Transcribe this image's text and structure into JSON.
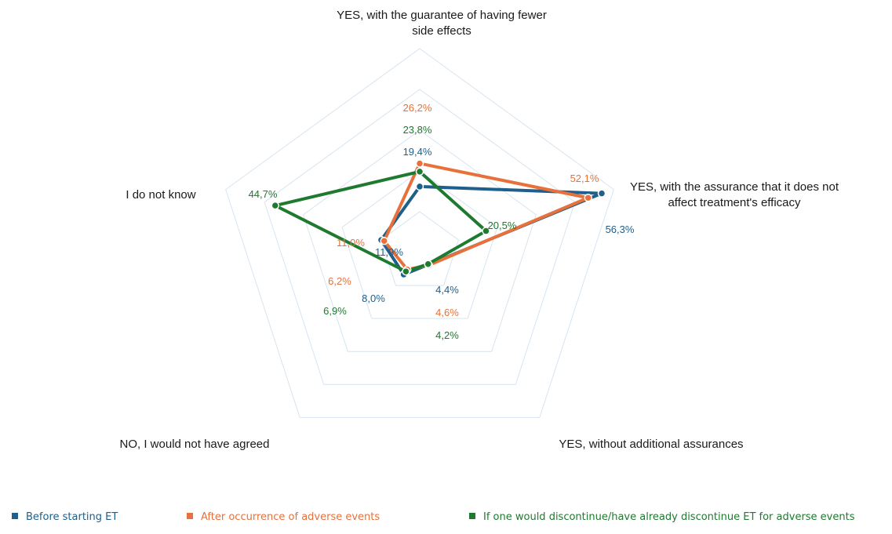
{
  "chart_data": {
    "type": "radar",
    "axes": [
      {
        "label_lines": [
          "YES, with the guarantee of having fewer",
          "side effects"
        ]
      },
      {
        "label_lines": [
          "YES, with the assurance that it does not",
          "affect treatment's efficacy"
        ]
      },
      {
        "label_lines": [
          "YES, without additional assurances"
        ]
      },
      {
        "label_lines": [
          "NO, I would not have agreed"
        ]
      },
      {
        "label_lines": [
          "I do not know"
        ]
      }
    ],
    "rmax": 60,
    "rings": 5,
    "series": [
      {
        "name": "Before starting ET",
        "color": "#1f5f8b",
        "values": [
          19.4,
          56.3,
          4.4,
          8.0,
          11.9
        ],
        "labels": [
          "19,4%",
          "56,3%",
          "4,4%",
          "8,0%",
          "11,9%"
        ]
      },
      {
        "name": "After occurrence of adverse events",
        "color": "#e8703a",
        "values": [
          26.2,
          52.1,
          4.6,
          6.2,
          11.0
        ],
        "labels": [
          "26,2%",
          "52,1%",
          "4,6%",
          "6,2%",
          "11,0%"
        ]
      },
      {
        "name": "If  one would discontinue/have already discontinue ET for adverse events",
        "color": "#1e7a2e",
        "values": [
          23.8,
          20.5,
          4.2,
          6.9,
          44.7
        ],
        "labels": [
          "23,8%",
          "20,5%",
          "4,2%",
          "6,9%",
          "44,7%"
        ]
      }
    ],
    "grid_color": "#d6e4f0",
    "legend_position": "bottom"
  }
}
